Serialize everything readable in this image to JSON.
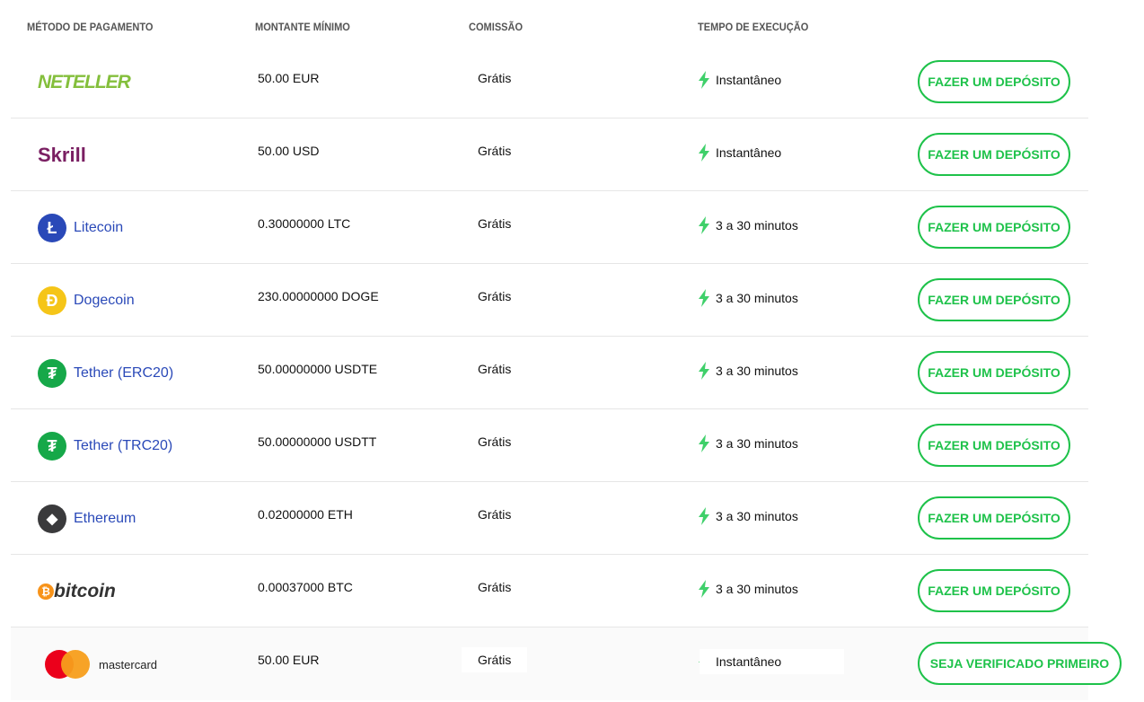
{
  "headers": {
    "method": "MÉTODO DE PAGAMENTO",
    "amount": "MONTANTE MÍNIMO",
    "commission": "COMISSÃO",
    "time": "TEMPO DE EXECUÇÃO"
  },
  "colors": {
    "accent": "#1ec24a",
    "link": "#2a49b8",
    "bolt": "#3fd06a"
  },
  "rows": [
    {
      "method": "NETELLER",
      "amount": "50.00 EUR",
      "commission": "Grátis",
      "time": "Instantâneo",
      "button": "FAZER UM DEPÓSITO"
    },
    {
      "method": "Skrill",
      "amount": "50.00 USD",
      "commission": "Grátis",
      "time": "Instantâneo",
      "button": "FAZER UM DEPÓSITO"
    },
    {
      "method": "Litecoin",
      "amount": "0.30000000 LTC",
      "commission": "Grátis",
      "time": "3 a 30 minutos",
      "button": "FAZER UM DEPÓSITO"
    },
    {
      "method": "Dogecoin",
      "amount": "230.00000000 DOGE",
      "commission": "Grátis",
      "time": "3 a 30 minutos",
      "button": "FAZER UM DEPÓSITO"
    },
    {
      "method": "Tether (ERC20)",
      "amount": "50.00000000 USDTE",
      "commission": "Grátis",
      "time": "3 a 30 minutos",
      "button": "FAZER UM DEPÓSITO"
    },
    {
      "method": "Tether (TRC20)",
      "amount": "50.00000000 USDTT",
      "commission": "Grátis",
      "time": "3 a 30 minutos",
      "button": "FAZER UM DEPÓSITO"
    },
    {
      "method": "Ethereum",
      "amount": "0.02000000 ETH",
      "commission": "Grátis",
      "time": "3 a 30 minutos",
      "button": "FAZER UM DEPÓSITO"
    },
    {
      "method": "bitcoin",
      "amount": "0.00037000 BTC",
      "commission": "Grátis",
      "time": "3 a 30 minutos",
      "button": "FAZER UM DEPÓSITO"
    },
    {
      "method": "mastercard",
      "amount": "50.00 EUR",
      "commission": "Grátis",
      "time": "Instantâneo",
      "button": "SEJA VERIFICADO PRIMEIRO"
    }
  ]
}
